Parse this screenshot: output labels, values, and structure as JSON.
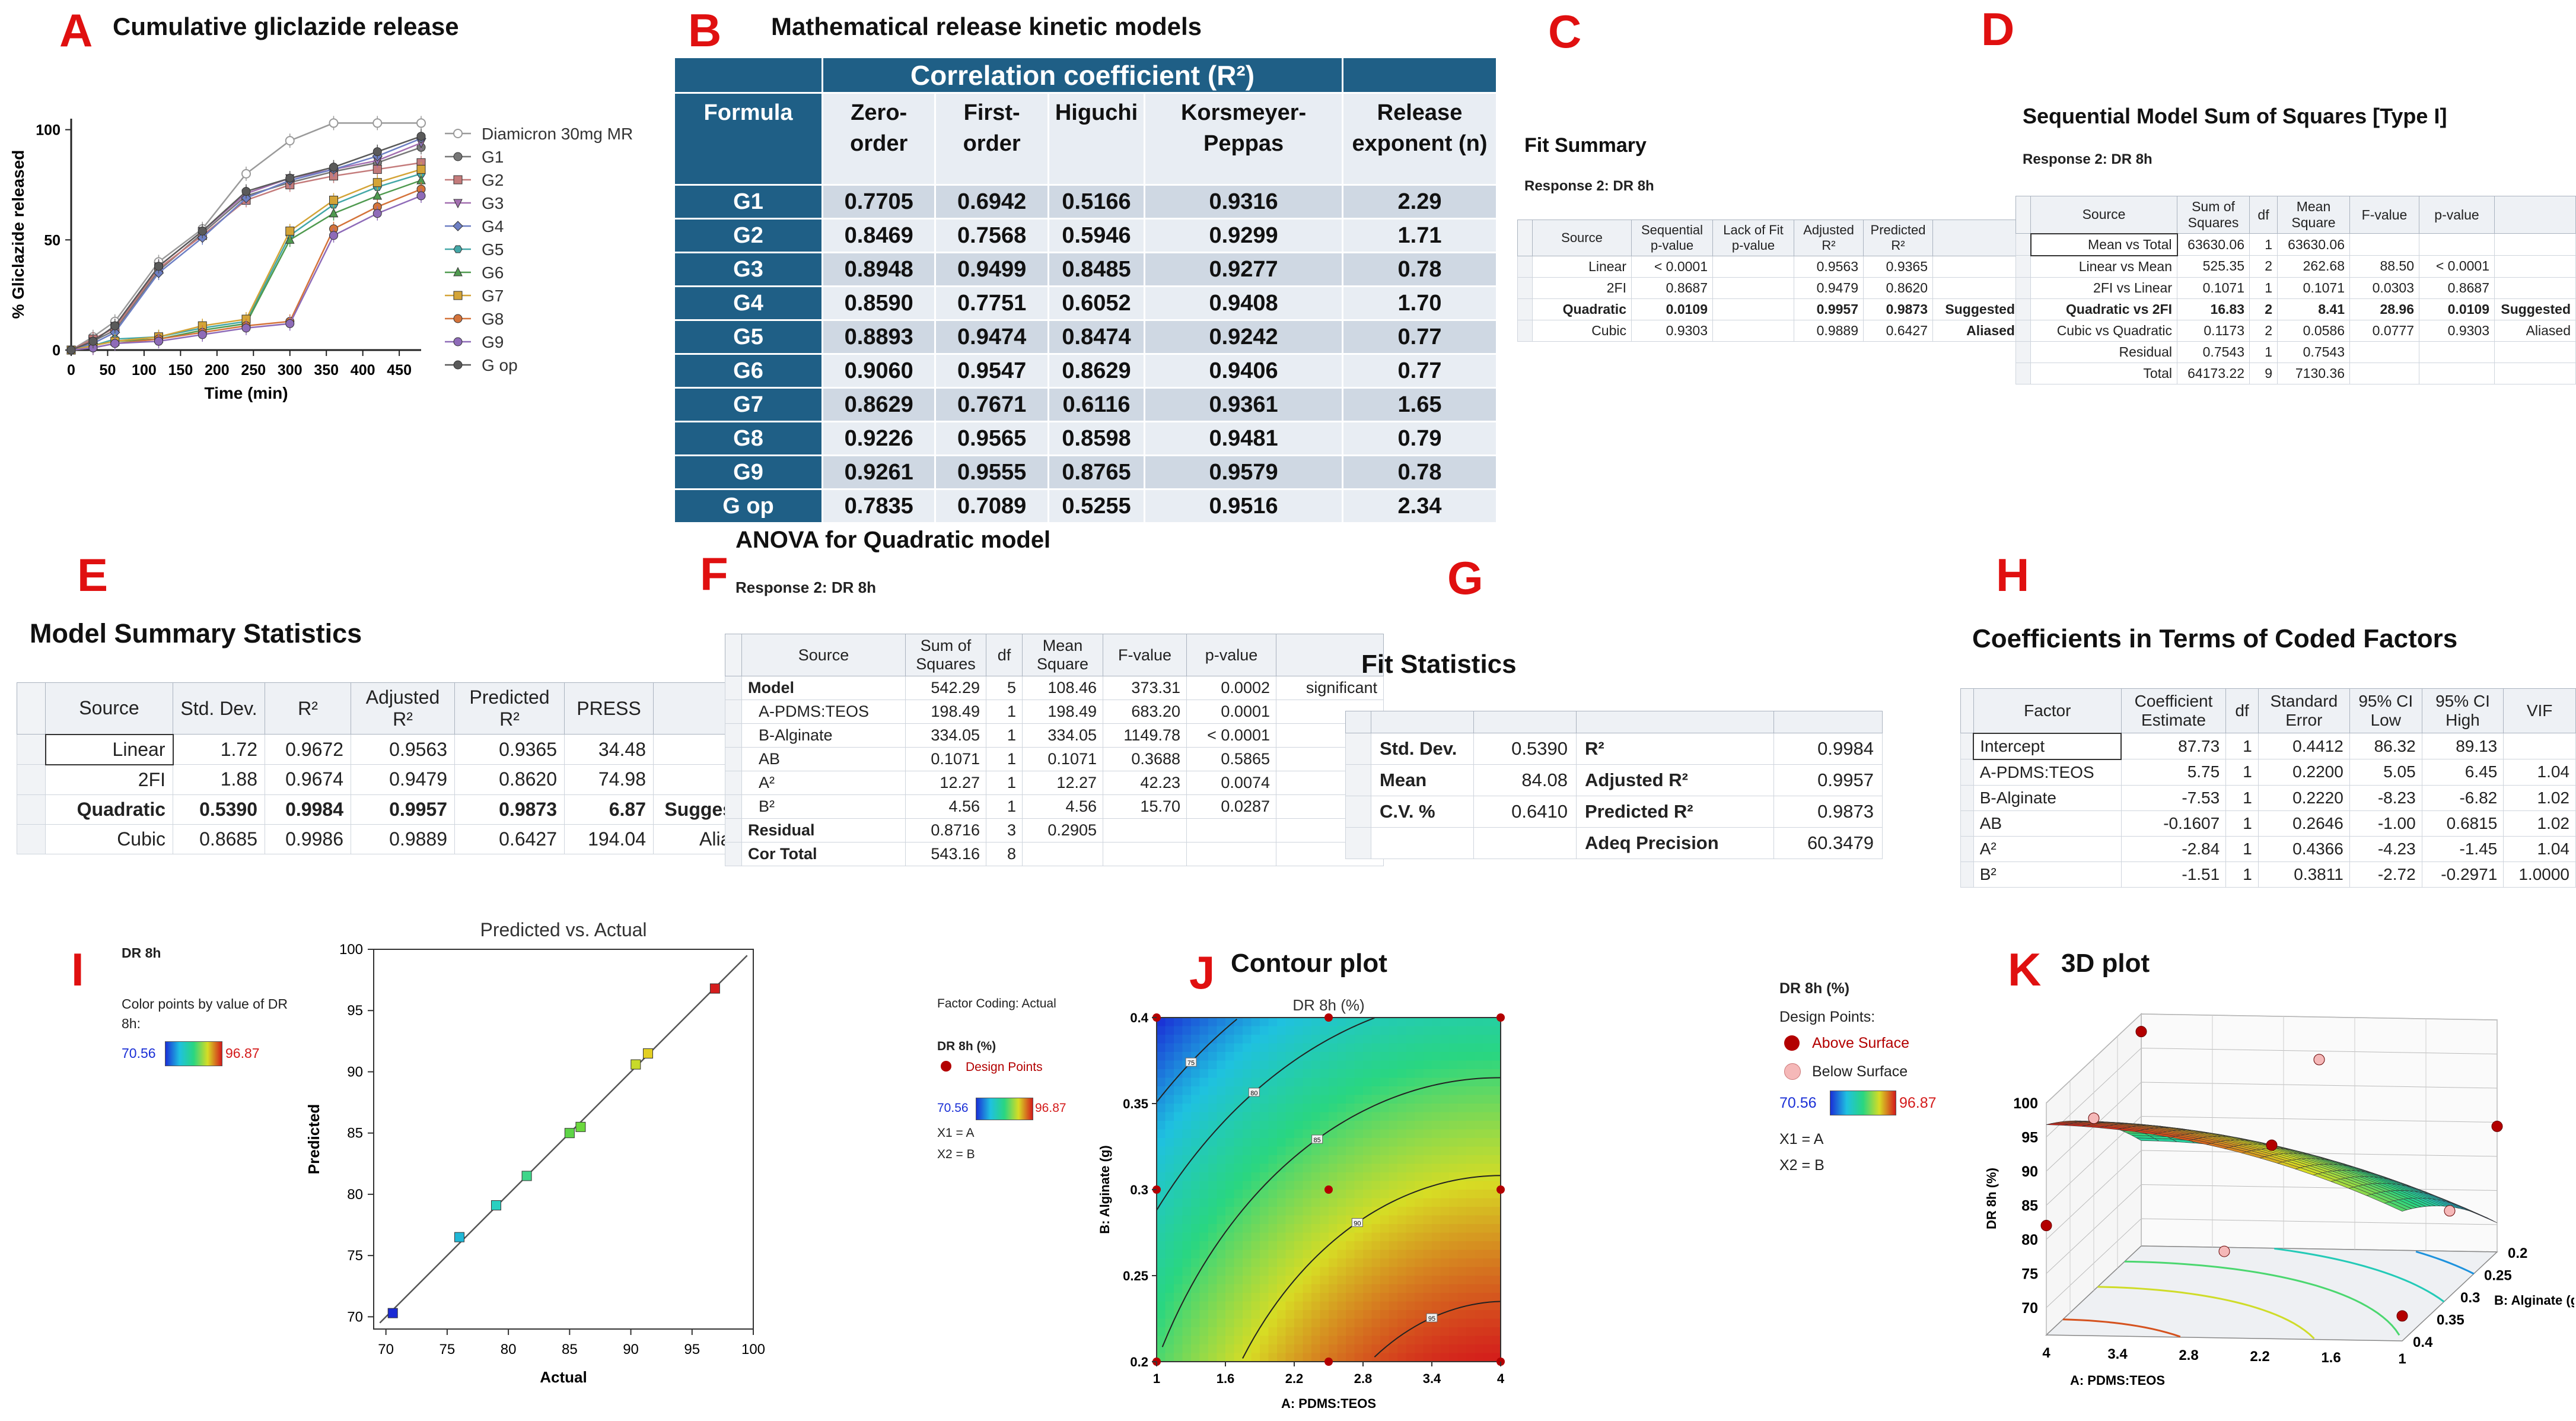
{
  "panels": {
    "A": {
      "letter": "A",
      "title": "Cumulative gliclazide release"
    },
    "B": {
      "letter": "B",
      "title": "Mathematical release kinetic models"
    },
    "C": {
      "letter": "C",
      "title": "Fit Summary",
      "subtitle": "Response 2: DR 8h"
    },
    "D": {
      "letter": "D",
      "title": "Sequential Model Sum of Squares [Type I]",
      "subtitle": "Response 2: DR 8h"
    },
    "E": {
      "letter": "E",
      "title": "Model Summary Statistics"
    },
    "F": {
      "letter": "F",
      "title": "ANOVA for Quadratic model",
      "subtitle": "Response 2: DR 8h"
    },
    "G": {
      "letter": "G",
      "title": "Fit Statistics"
    },
    "H": {
      "letter": "H",
      "title": "Coefficients in Terms of Coded Factors"
    },
    "I": {
      "letter": "I"
    },
    "J": {
      "letter": "J",
      "title": "Contour plot"
    },
    "K": {
      "letter": "K",
      "title": "3D plot"
    }
  },
  "chart_data": [
    {
      "id": "A",
      "type": "line",
      "title": "Cumulative gliclazide release",
      "xlabel": "Time (min)",
      "ylabel": "% Gliclazide released",
      "xlim": [
        0,
        480
      ],
      "ylim": [
        0,
        105
      ],
      "xticks": [
        "0",
        "50",
        "100",
        "150",
        "200",
        "250",
        "300",
        "350",
        "400",
        "450"
      ],
      "yticks": [
        "0",
        "50",
        "100"
      ],
      "x": [
        0,
        30,
        60,
        120,
        180,
        240,
        300,
        360,
        420,
        480
      ],
      "series": [
        {
          "name": "Diamicron 30mg MR",
          "color": "#9a9a9a",
          "marker": "circle-open",
          "values": [
            0,
            6,
            13,
            40,
            55,
            80,
            95,
            103,
            103,
            103
          ]
        },
        {
          "name": "G1",
          "color": "#777777",
          "marker": "circle",
          "values": [
            0,
            4,
            9,
            36,
            53,
            70,
            76,
            81,
            85,
            92
          ]
        },
        {
          "name": "G2",
          "color": "#c47b7b",
          "marker": "square",
          "values": [
            0,
            5,
            10,
            37,
            52,
            68,
            75,
            79,
            82,
            85
          ]
        },
        {
          "name": "G3",
          "color": "#a36fb0",
          "marker": "triangle-down",
          "values": [
            0,
            4,
            11,
            38,
            54,
            71,
            78,
            82,
            86,
            94
          ]
        },
        {
          "name": "G4",
          "color": "#6d7fc4",
          "marker": "diamond",
          "values": [
            0,
            3,
            8,
            35,
            51,
            69,
            77,
            82,
            88,
            96
          ]
        },
        {
          "name": "G5",
          "color": "#43a7a7",
          "marker": "hexagon",
          "values": [
            0,
            2,
            5,
            6,
            10,
            13,
            52,
            66,
            74,
            80
          ]
        },
        {
          "name": "G6",
          "color": "#4f9a4f",
          "marker": "triangle",
          "values": [
            0,
            2,
            4,
            5,
            9,
            12,
            50,
            62,
            70,
            77
          ]
        },
        {
          "name": "G7",
          "color": "#d4a437",
          "marker": "square",
          "values": [
            0,
            2,
            4,
            6,
            11,
            14,
            54,
            68,
            76,
            82
          ]
        },
        {
          "name": "G8",
          "color": "#d4733a",
          "marker": "circle",
          "values": [
            0,
            1,
            3,
            5,
            8,
            11,
            13,
            55,
            65,
            73
          ]
        },
        {
          "name": "G9",
          "color": "#8e6bb8",
          "marker": "circle",
          "values": [
            0,
            1,
            3,
            4,
            7,
            10,
            12,
            52,
            62,
            70
          ]
        },
        {
          "name": "G op",
          "color": "#5a5a5a",
          "marker": "circle",
          "values": [
            0,
            4,
            11,
            38,
            54,
            72,
            78,
            83,
            90,
            97
          ]
        }
      ]
    },
    {
      "id": "I",
      "type": "scatter",
      "title": "Predicted vs. Actual",
      "xlabel": "Actual",
      "ylabel": "Predicted",
      "xlim": [
        69,
        100
      ],
      "ylim": [
        69,
        100
      ],
      "xticks": [
        "70",
        "75",
        "80",
        "85",
        "90",
        "95",
        "100"
      ],
      "yticks": [
        "70",
        "75",
        "80",
        "85",
        "90",
        "95",
        "100"
      ],
      "points": [
        {
          "x": 70.56,
          "y": 70.3,
          "color": "#1b2bd4"
        },
        {
          "x": 76.0,
          "y": 76.5,
          "color": "#20b7d6"
        },
        {
          "x": 79.0,
          "y": 79.1,
          "color": "#29d0c0"
        },
        {
          "x": 81.5,
          "y": 81.5,
          "color": "#3ed68a"
        },
        {
          "x": 85.0,
          "y": 85.0,
          "color": "#5ed447"
        },
        {
          "x": 85.9,
          "y": 85.5,
          "color": "#6bd83d"
        },
        {
          "x": 90.4,
          "y": 90.6,
          "color": "#c8da2a"
        },
        {
          "x": 91.4,
          "y": 91.5,
          "color": "#e3cf22"
        },
        {
          "x": 96.87,
          "y": 96.8,
          "color": "#d51d1d"
        }
      ],
      "legend_title": "DR 8h",
      "legend_text": "Color points by value of DR 8h:",
      "range_min": "70.56",
      "range_max": "96.87"
    },
    {
      "id": "J",
      "type": "heatmap",
      "title": "DR 8h (%)",
      "xlabel": "A: PDMS:TEOS",
      "ylabel": "B: Alginate (g)",
      "xticks": [
        "1",
        "1.6",
        "2.2",
        "2.8",
        "3.4",
        "4"
      ],
      "yticks": [
        "0.2",
        "0.25",
        "0.3",
        "0.35",
        "0.4"
      ],
      "contour_labels": [
        "75",
        "80",
        "85",
        "90",
        "95"
      ],
      "legend": {
        "coding": "Factor Coding: Actual",
        "name": "DR 8h (%)",
        "points": "Design Points",
        "min": "70.56",
        "max": "96.87",
        "x1": "X1 = A",
        "x2": "X2 = B"
      }
    },
    {
      "id": "K",
      "type": "surface",
      "zlabel": "DR 8h (%)",
      "xlabel": "A: PDMS:TEOS",
      "ylabel": "B: Alginate (g)",
      "zticks": [
        "70",
        "75",
        "80",
        "85",
        "90",
        "95",
        "100"
      ],
      "xticks": [
        "4",
        "3.4",
        "2.8",
        "2.2",
        "1.6",
        "1"
      ],
      "yticks": [
        "0.2",
        "0.25",
        "0.3",
        "0.35",
        "0.4"
      ],
      "legend": {
        "name": "DR 8h (%)",
        "design": "Design Points:",
        "above": "Above Surface",
        "below": "Below Surface",
        "min": "70.56",
        "max": "96.87",
        "x1": "X1 = A",
        "x2": "X2 = B"
      }
    }
  ],
  "tableB": {
    "group_header": "Correlation coefficient (R²)",
    "headers": [
      "Formula",
      "Zero-order",
      "First-order",
      "Higuchi",
      "Korsmeyer-Peppas",
      "Release exponent (n)"
    ],
    "rows": [
      [
        "G1",
        "0.7705",
        "0.6942",
        "0.5166",
        "0.9316",
        "2.29"
      ],
      [
        "G2",
        "0.8469",
        "0.7568",
        "0.5946",
        "0.9299",
        "1.71"
      ],
      [
        "G3",
        "0.8948",
        "0.9499",
        "0.8485",
        "0.9277",
        "0.78"
      ],
      [
        "G4",
        "0.8590",
        "0.7751",
        "0.6052",
        "0.9408",
        "1.70"
      ],
      [
        "G5",
        "0.8893",
        "0.9474",
        "0.8474",
        "0.9242",
        "0.77"
      ],
      [
        "G6",
        "0.9060",
        "0.9547",
        "0.8629",
        "0.9406",
        "0.77"
      ],
      [
        "G7",
        "0.8629",
        "0.7671",
        "0.6116",
        "0.9361",
        "1.65"
      ],
      [
        "G8",
        "0.9226",
        "0.9565",
        "0.8598",
        "0.9481",
        "0.79"
      ],
      [
        "G9",
        "0.9261",
        "0.9555",
        "0.8765",
        "0.9579",
        "0.78"
      ],
      [
        "G op",
        "0.7835",
        "0.7089",
        "0.5255",
        "0.9516",
        "2.34"
      ]
    ]
  },
  "tableC": {
    "headers": [
      "Source",
      "Sequential p-value",
      "Lack of Fit p-value",
      "Adjusted R²",
      "Predicted R²",
      ""
    ],
    "rows": [
      [
        "Linear",
        "< 0.0001",
        "",
        "0.9563",
        "0.9365",
        ""
      ],
      [
        "2FI",
        "0.8687",
        "",
        "0.9479",
        "0.8620",
        ""
      ],
      [
        "Quadratic",
        "0.0109",
        "",
        "0.9957",
        "0.9873",
        "Suggested"
      ],
      [
        "Cubic",
        "0.9303",
        "",
        "0.9889",
        "0.6427",
        "Aliased"
      ]
    ]
  },
  "tableD": {
    "headers": [
      "Source",
      "Sum of Squares",
      "df",
      "Mean Square",
      "F-value",
      "p-value",
      ""
    ],
    "rows": [
      [
        "Mean vs Total",
        "63630.06",
        "1",
        "63630.06",
        "",
        "",
        ""
      ],
      [
        "Linear vs Mean",
        "525.35",
        "2",
        "262.68",
        "88.50",
        "< 0.0001",
        ""
      ],
      [
        "2FI vs Linear",
        "0.1071",
        "1",
        "0.1071",
        "0.0303",
        "0.8687",
        ""
      ],
      [
        "Quadratic vs 2FI",
        "16.83",
        "2",
        "8.41",
        "28.96",
        "0.0109",
        "Suggested"
      ],
      [
        "Cubic vs Quadratic",
        "0.1173",
        "2",
        "0.0586",
        "0.0777",
        "0.9303",
        "Aliased"
      ],
      [
        "Residual",
        "0.7543",
        "1",
        "0.7543",
        "",
        "",
        ""
      ],
      [
        "Total",
        "64173.22",
        "9",
        "7130.36",
        "",
        "",
        ""
      ]
    ]
  },
  "tableE": {
    "headers": [
      "Source",
      "Std. Dev.",
      "R²",
      "Adjusted R²",
      "Predicted R²",
      "PRESS",
      ""
    ],
    "rows": [
      [
        "Linear",
        "1.72",
        "0.9672",
        "0.9563",
        "0.9365",
        "34.48",
        ""
      ],
      [
        "2FI",
        "1.88",
        "0.9674",
        "0.9479",
        "0.8620",
        "74.98",
        ""
      ],
      [
        "Quadratic",
        "0.5390",
        "0.9984",
        "0.9957",
        "0.9873",
        "6.87",
        "Suggested"
      ],
      [
        "Cubic",
        "0.8685",
        "0.9986",
        "0.9889",
        "0.6427",
        "194.04",
        "Aliased"
      ]
    ]
  },
  "tableF": {
    "headers": [
      "Source",
      "Sum of Squares",
      "df",
      "Mean Square",
      "F-value",
      "p-value",
      ""
    ],
    "rows": [
      [
        "Model",
        "542.29",
        "5",
        "108.46",
        "373.31",
        "0.0002",
        "significant"
      ],
      [
        "A-PDMS:TEOS",
        "198.49",
        "1",
        "198.49",
        "683.20",
        "0.0001",
        ""
      ],
      [
        "B-Alginate",
        "334.05",
        "1",
        "334.05",
        "1149.78",
        "< 0.0001",
        ""
      ],
      [
        "AB",
        "0.1071",
        "1",
        "0.1071",
        "0.3688",
        "0.5865",
        ""
      ],
      [
        "A²",
        "12.27",
        "1",
        "12.27",
        "42.23",
        "0.0074",
        ""
      ],
      [
        "B²",
        "4.56",
        "1",
        "4.56",
        "15.70",
        "0.0287",
        ""
      ],
      [
        "Residual",
        "0.8716",
        "3",
        "0.2905",
        "",
        "",
        ""
      ],
      [
        "Cor Total",
        "543.16",
        "8",
        "",
        "",
        "",
        ""
      ]
    ]
  },
  "tableG": {
    "rows": [
      [
        "Std. Dev.",
        "0.5390",
        "R²",
        "0.9984"
      ],
      [
        "Mean",
        "84.08",
        "Adjusted R²",
        "0.9957"
      ],
      [
        "C.V. %",
        "0.6410",
        "Predicted R²",
        "0.9873"
      ],
      [
        "",
        "",
        "Adeq Precision",
        "60.3479"
      ]
    ]
  },
  "tableH": {
    "headers": [
      "Factor",
      "Coefficient Estimate",
      "df",
      "Standard Error",
      "95% CI Low",
      "95% CI High",
      "VIF"
    ],
    "rows": [
      [
        "Intercept",
        "87.73",
        "1",
        "0.4412",
        "86.32",
        "89.13",
        ""
      ],
      [
        "A-PDMS:TEOS",
        "5.75",
        "1",
        "0.2200",
        "5.05",
        "6.45",
        "1.04"
      ],
      [
        "B-Alginate",
        "-7.53",
        "1",
        "0.2220",
        "-8.23",
        "-6.82",
        "1.02"
      ],
      [
        "AB",
        "-0.1607",
        "1",
        "0.2646",
        "-1.00",
        "0.6815",
        "1.02"
      ],
      [
        "A²",
        "-2.84",
        "1",
        "0.4366",
        "-4.23",
        "-1.45",
        "1.04"
      ],
      [
        "B²",
        "-1.51",
        "1",
        "0.3811",
        "-2.72",
        "-0.2971",
        "1.0000"
      ]
    ]
  }
}
